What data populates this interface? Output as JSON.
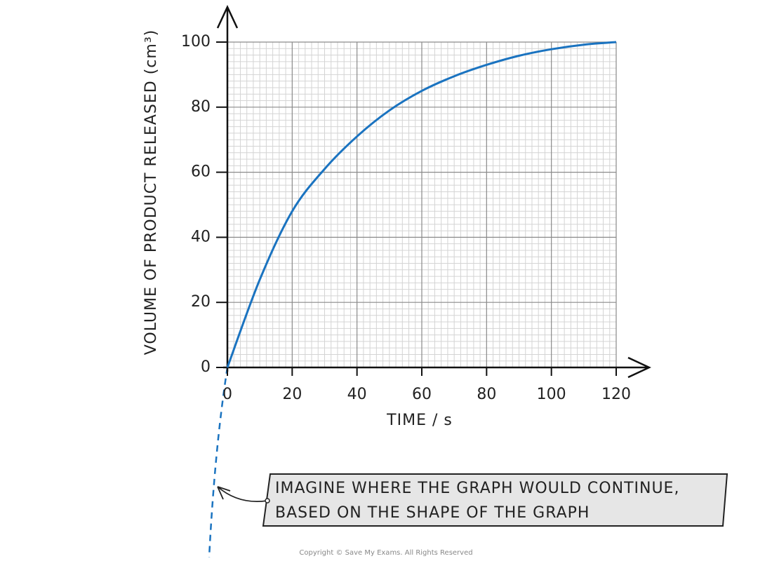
{
  "chart_data": {
    "type": "line",
    "x_label": "TIME / s",
    "y_label": "VOLUME OF PRODUCT RELEASED (cm³)",
    "x": [
      0,
      10,
      20,
      30,
      40,
      50,
      60,
      70,
      80,
      90,
      100,
      110,
      120
    ],
    "series": [
      {
        "color": "#1a73c0",
        "values": [
          0,
          27,
          48,
          61,
          71,
          79,
          85,
          89.5,
          93,
          95.8,
          97.8,
          99.2,
          100
        ]
      }
    ],
    "xlim": [
      0,
      120
    ],
    "xticks": [
      0,
      20,
      40,
      60,
      80,
      100,
      120
    ],
    "ylim": [
      0,
      100
    ],
    "yticks": [
      0,
      20,
      40,
      60,
      80,
      100
    ],
    "grid": true,
    "annotation": [
      "IMAGINE WHERE THE GRAPH WOULD CONTINUE,",
      "BASED ON THE SHAPE OF THE GRAPH"
    ],
    "copyright": "Copyright © Save My Exams. All Rights Reserved"
  }
}
